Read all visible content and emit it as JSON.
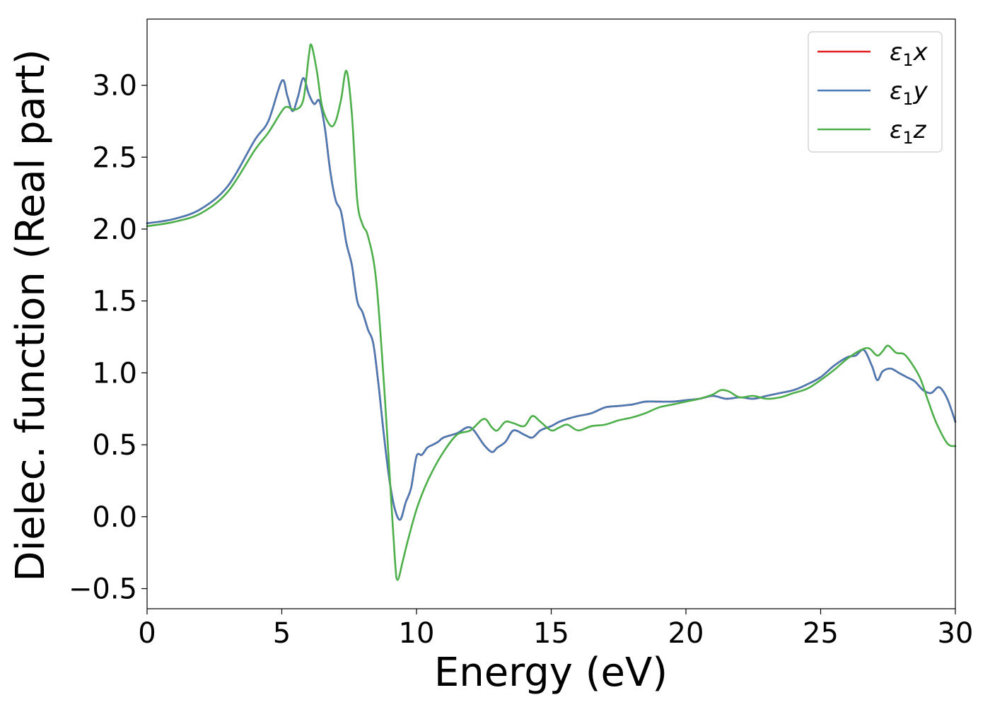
{
  "chart_data": {
    "type": "line",
    "xlabel": "Energy (eV)",
    "ylabel": "Dielec. function (Real part)",
    "xlim": [
      0,
      30
    ],
    "ylim": [
      -0.64,
      3.46
    ],
    "xticks": [
      0,
      5,
      10,
      15,
      20,
      25,
      30
    ],
    "yticks": [
      -0.5,
      0.0,
      0.5,
      1.0,
      1.5,
      2.0,
      2.5,
      3.0
    ],
    "xtick_labels": [
      "0",
      "5",
      "10",
      "15",
      "20",
      "25",
      "30"
    ],
    "ytick_labels": [
      "−0.5",
      "0.0",
      "0.5",
      "1.0",
      "1.5",
      "2.0",
      "2.5",
      "3.0"
    ],
    "legend_position": "upper right",
    "grid": false,
    "series": [
      {
        "name": "ε₁x",
        "legend_base": "ε",
        "legend_sub": "1",
        "legend_var": "x",
        "color": "#e41a1c",
        "x": [
          0,
          1,
          2,
          3,
          4,
          4.5,
          5,
          5.2,
          5.4,
          5.6,
          5.8,
          6.0,
          6.2,
          6.4,
          6.6,
          6.8,
          7.0,
          7.2,
          7.4,
          7.6,
          7.8,
          8.0,
          8.2,
          8.4,
          8.6,
          8.8,
          9.0,
          9.2,
          9.4,
          9.6,
          9.8,
          10.0,
          10.2,
          10.4,
          10.6,
          10.8,
          11.0,
          11.5,
          12.0,
          12.5,
          12.8,
          13.0,
          13.3,
          13.6,
          14.0,
          14.3,
          14.6,
          15.0,
          15.3,
          15.6,
          16.0,
          16.5,
          17.0,
          17.5,
          18.0,
          18.5,
          19.0,
          19.5,
          20.0,
          20.5,
          21.0,
          21.5,
          22.0,
          22.5,
          23.0,
          23.5,
          24.0,
          24.5,
          25.0,
          25.5,
          26.0,
          26.3,
          26.6,
          26.9,
          27.1,
          27.3,
          27.6,
          27.9,
          28.2,
          28.5,
          28.8,
          29.1,
          29.4,
          29.7,
          30.0
        ],
        "y": [
          2.04,
          2.07,
          2.14,
          2.3,
          2.62,
          2.75,
          3.03,
          2.93,
          2.82,
          2.92,
          3.05,
          2.94,
          2.87,
          2.89,
          2.7,
          2.4,
          2.2,
          2.12,
          1.9,
          1.75,
          1.5,
          1.42,
          1.3,
          1.2,
          0.9,
          0.55,
          0.25,
          0.05,
          -0.02,
          0.1,
          0.2,
          0.42,
          0.43,
          0.48,
          0.5,
          0.52,
          0.55,
          0.58,
          0.62,
          0.5,
          0.45,
          0.48,
          0.52,
          0.6,
          0.57,
          0.55,
          0.6,
          0.63,
          0.66,
          0.68,
          0.7,
          0.72,
          0.76,
          0.77,
          0.78,
          0.8,
          0.8,
          0.8,
          0.81,
          0.82,
          0.84,
          0.82,
          0.83,
          0.82,
          0.84,
          0.86,
          0.88,
          0.92,
          0.97,
          1.05,
          1.11,
          1.12,
          1.16,
          1.05,
          0.95,
          1.01,
          1.03,
          1.0,
          0.97,
          0.94,
          0.88,
          0.86,
          0.9,
          0.82,
          0.66
        ]
      },
      {
        "name": "ε₁y",
        "legend_base": "ε",
        "legend_sub": "1",
        "legend_var": "y",
        "color": "#4a7ab4",
        "x": [
          0,
          1,
          2,
          3,
          4,
          4.5,
          5,
          5.2,
          5.4,
          5.6,
          5.8,
          6.0,
          6.2,
          6.4,
          6.6,
          6.8,
          7.0,
          7.2,
          7.4,
          7.6,
          7.8,
          8.0,
          8.2,
          8.4,
          8.6,
          8.8,
          9.0,
          9.2,
          9.4,
          9.6,
          9.8,
          10.0,
          10.2,
          10.4,
          10.6,
          10.8,
          11.0,
          11.5,
          12.0,
          12.5,
          12.8,
          13.0,
          13.3,
          13.6,
          14.0,
          14.3,
          14.6,
          15.0,
          15.3,
          15.6,
          16.0,
          16.5,
          17.0,
          17.5,
          18.0,
          18.5,
          19.0,
          19.5,
          20.0,
          20.5,
          21.0,
          21.5,
          22.0,
          22.5,
          23.0,
          23.5,
          24.0,
          24.5,
          25.0,
          25.5,
          26.0,
          26.3,
          26.6,
          26.9,
          27.1,
          27.3,
          27.6,
          27.9,
          28.2,
          28.5,
          28.8,
          29.1,
          29.4,
          29.7,
          30.0
        ],
        "y": [
          2.04,
          2.07,
          2.14,
          2.3,
          2.62,
          2.75,
          3.03,
          2.93,
          2.82,
          2.92,
          3.05,
          2.94,
          2.87,
          2.89,
          2.7,
          2.4,
          2.2,
          2.12,
          1.9,
          1.75,
          1.5,
          1.42,
          1.3,
          1.2,
          0.9,
          0.55,
          0.25,
          0.05,
          -0.02,
          0.1,
          0.2,
          0.42,
          0.43,
          0.48,
          0.5,
          0.52,
          0.55,
          0.58,
          0.62,
          0.5,
          0.45,
          0.48,
          0.52,
          0.6,
          0.57,
          0.55,
          0.6,
          0.63,
          0.66,
          0.68,
          0.7,
          0.72,
          0.76,
          0.77,
          0.78,
          0.8,
          0.8,
          0.8,
          0.81,
          0.82,
          0.84,
          0.82,
          0.83,
          0.82,
          0.84,
          0.86,
          0.88,
          0.92,
          0.97,
          1.05,
          1.11,
          1.12,
          1.16,
          1.05,
          0.95,
          1.01,
          1.03,
          1.0,
          0.97,
          0.94,
          0.88,
          0.86,
          0.9,
          0.82,
          0.66
        ]
      },
      {
        "name": "ε₁z",
        "legend_base": "ε",
        "legend_sub": "1",
        "legend_var": "z",
        "color": "#4daf4a",
        "x": [
          0,
          1,
          2,
          3,
          4,
          4.5,
          5,
          5.2,
          5.5,
          5.8,
          6.0,
          6.1,
          6.3,
          6.5,
          6.8,
          7.0,
          7.2,
          7.4,
          7.6,
          7.8,
          8.0,
          8.2,
          8.5,
          8.8,
          9.0,
          9.2,
          9.3,
          9.5,
          9.7,
          10.0,
          10.3,
          10.6,
          11.0,
          11.5,
          12.0,
          12.5,
          12.8,
          13.0,
          13.3,
          13.6,
          14.0,
          14.3,
          14.6,
          15.0,
          15.3,
          15.6,
          16.0,
          16.5,
          17.0,
          17.5,
          18.0,
          18.5,
          19.0,
          19.5,
          20.0,
          20.5,
          21.0,
          21.3,
          21.6,
          22.0,
          22.5,
          23.0,
          23.5,
          24.0,
          24.5,
          25.0,
          25.5,
          26.0,
          26.5,
          26.8,
          27.1,
          27.3,
          27.5,
          27.8,
          28.1,
          28.4,
          28.7,
          29.0,
          29.3,
          29.7,
          30.0
        ],
        "y": [
          2.02,
          2.05,
          2.11,
          2.26,
          2.55,
          2.67,
          2.82,
          2.85,
          2.83,
          2.9,
          3.2,
          3.28,
          3.1,
          2.85,
          2.72,
          2.75,
          2.9,
          3.1,
          2.8,
          2.2,
          2.03,
          1.95,
          1.65,
          0.9,
          0.3,
          -0.3,
          -0.44,
          -0.3,
          -0.15,
          0.05,
          0.2,
          0.32,
          0.45,
          0.57,
          0.6,
          0.68,
          0.62,
          0.6,
          0.66,
          0.65,
          0.63,
          0.7,
          0.66,
          0.6,
          0.62,
          0.64,
          0.6,
          0.63,
          0.64,
          0.67,
          0.69,
          0.72,
          0.76,
          0.78,
          0.8,
          0.82,
          0.85,
          0.88,
          0.87,
          0.83,
          0.84,
          0.82,
          0.83,
          0.86,
          0.89,
          0.95,
          1.02,
          1.1,
          1.16,
          1.17,
          1.12,
          1.15,
          1.19,
          1.14,
          1.13,
          1.06,
          0.96,
          0.8,
          0.65,
          0.51,
          0.49
        ]
      }
    ]
  }
}
